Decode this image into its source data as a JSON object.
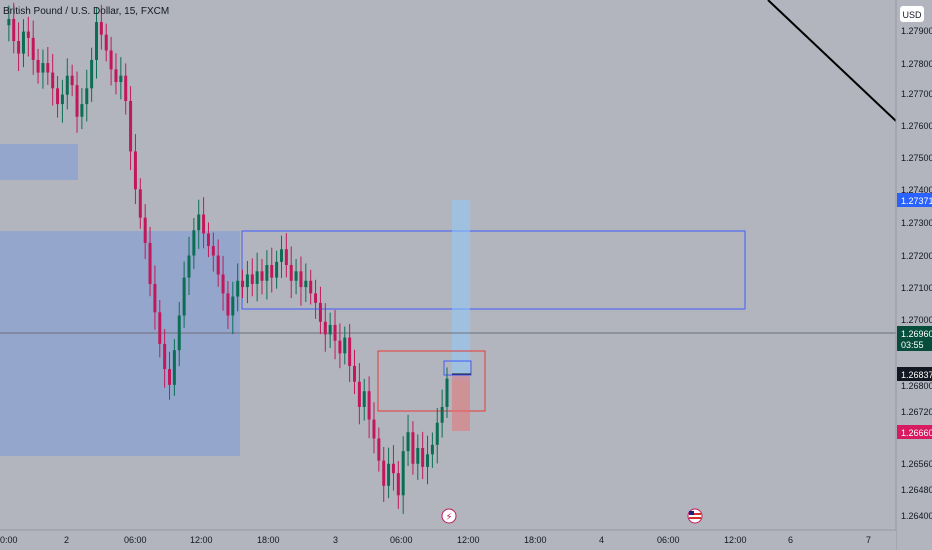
{
  "header": {
    "symbol_title": "British Pound / U.S. Dollar, 15, FXCM"
  },
  "currency_button": {
    "label": "USD"
  },
  "colors": {
    "background": "#b2b5be",
    "up": "#0b6e54",
    "down": "#c2185b",
    "zone_fill": "#8fa3cf",
    "zone_border": "#3d5afe",
    "grid": "#a9acb5",
    "trendline": "#000000",
    "price_tag_blue": "#2962ff",
    "price_tag_green": "#064e3b",
    "price_tag_black": "#131722",
    "price_tag_red": "#d81b60",
    "stop_box": "#e57373",
    "target_box": "#90caf9"
  },
  "price_axis": {
    "ticks": [
      "1.27900",
      "1.27800",
      "1.27700",
      "1.27600",
      "1.27500",
      "1.27400",
      "1.27300",
      "1.27200",
      "1.27100",
      "1.27000",
      "1.26800",
      "1.26720",
      "1.26560",
      "1.26480",
      "1.26400"
    ]
  },
  "price_tags": {
    "level_1": {
      "value": "1.27371"
    },
    "current": {
      "value": "1.26960",
      "countdown": "03:55"
    },
    "level_2": {
      "value": "1.26837"
    },
    "level_3": {
      "value": "1.26660"
    }
  },
  "time_axis": {
    "labels": [
      "0:00",
      "2",
      "06:00",
      "12:00",
      "18:00",
      "3",
      "06:00",
      "12:00",
      "18:00",
      "4",
      "06:00",
      "12:00",
      "6",
      "7"
    ]
  },
  "events": {
    "lightning": "⚡",
    "flag": "US"
  },
  "chart_data": {
    "type": "candlestick",
    "title": "British Pound / U.S. Dollar, 15, FXCM",
    "ylim": [
      1.2637,
      1.2805
    ],
    "x": [
      "0:00",
      "2",
      "06:00",
      "12:00",
      "18:00",
      "3",
      "06:00",
      "12:00",
      "18:00",
      "4",
      "06:00",
      "12:00",
      "6",
      "7"
    ],
    "close_path": [
      1.2797,
      1.2799,
      1.2792,
      1.2788,
      1.2795,
      1.2793,
      1.2786,
      1.2782,
      1.2785,
      1.2782,
      1.2777,
      1.2772,
      1.2775,
      1.2781,
      1.2778,
      1.2768,
      1.2772,
      1.2777,
      1.2786,
      1.2798,
      1.2794,
      1.2789,
      1.2783,
      1.2779,
      1.2781,
      1.2773,
      1.2757,
      1.2745,
      1.2736,
      1.2728,
      1.2715,
      1.2706,
      1.2696,
      1.2688,
      1.2683,
      1.2694,
      1.2705,
      1.2717,
      1.2724,
      1.2732,
      1.2737,
      1.2731,
      1.2727,
      1.2724,
      1.2718,
      1.2712,
      1.2705,
      1.2711,
      1.2716,
      1.2714,
      1.2718,
      1.2715,
      1.2719,
      1.2716,
      1.2721,
      1.2717,
      1.2722,
      1.2726,
      1.2721,
      1.2716,
      1.2719,
      1.2714,
      1.2716,
      1.2712,
      1.2709,
      1.2703,
      1.2699,
      1.2702,
      1.2697,
      1.2693,
      1.2698,
      1.2689,
      1.2684,
      1.2676,
      1.2681,
      1.2672,
      1.2666,
      1.2659,
      1.2651,
      1.2658,
      1.2655,
      1.2648,
      1.2662,
      1.2668,
      1.2658,
      1.2663,
      1.2657,
      1.2661,
      1.2664,
      1.2671,
      1.2676,
      1.2685
    ],
    "series": [
      {
        "name": "1.27371",
        "type": "level",
        "value": 1.27371
      },
      {
        "name": "1.26960",
        "type": "level",
        "value": 1.2696
      },
      {
        "name": "1.26837",
        "type": "level",
        "value": 1.26837
      },
      {
        "name": "1.26660",
        "type": "level",
        "value": 1.2666
      }
    ],
    "zones": [
      {
        "kind": "filled",
        "y_top": 1.2751,
        "y_bottom": 1.2742
      },
      {
        "kind": "filled",
        "y_top": 1.2729,
        "y_bottom": 1.2667
      },
      {
        "kind": "outlined",
        "y_top": 1.2729,
        "y_bottom": 1.2704
      }
    ],
    "trendline": {
      "y_start": 1.2805,
      "y_end": 1.2762
    },
    "grid": false
  }
}
